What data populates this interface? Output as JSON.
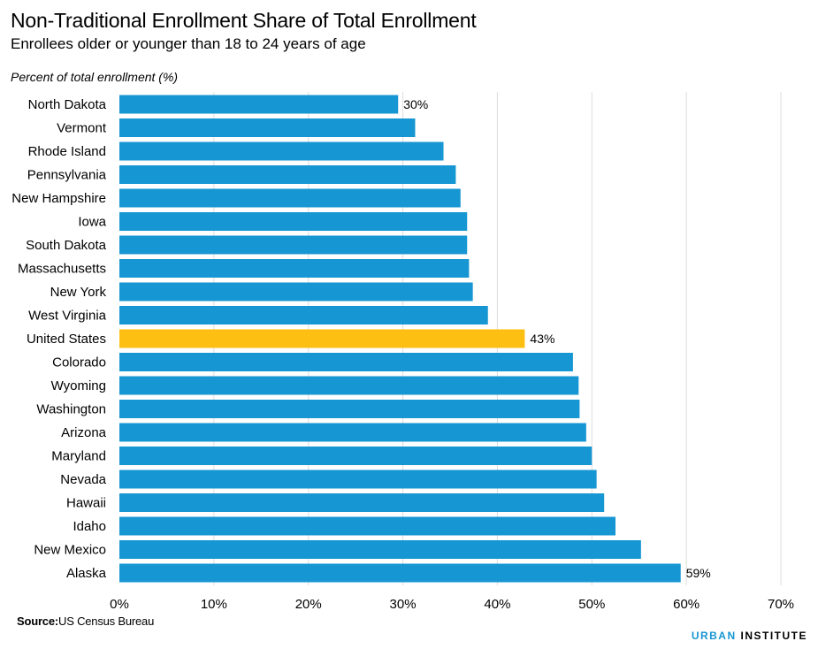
{
  "title": "Non-Traditional Enrollment Share of Total Enrollment",
  "subtitle": "Enrollees older or younger than 18 to 24 years of age",
  "source_label": "Source:",
  "source_text": "US Census Bureau",
  "logo": {
    "part1": "URBAN",
    "part2": "INSTITUTE"
  },
  "colors": {
    "bar": "#1696d2",
    "highlight": "#fdbf11",
    "grid": "#dedddd",
    "logo_accent": "#1696d2"
  },
  "chart_data": {
    "type": "bar",
    "orientation": "horizontal",
    "title": "Non-Traditional Enrollment Share of Total Enrollment",
    "subtitle": "Enrollees older or younger than 18 to 24 years of age",
    "ylabel": "Percent of total enrollment (%)",
    "categories": [
      "North Dakota",
      "Vermont",
      "Rhode Island",
      "Pennsylvania",
      "New Hampshire",
      "Iowa",
      "South Dakota",
      "Massachusetts",
      "New York",
      "West Virginia",
      "United States",
      "Colorado",
      "Wyoming",
      "Washington",
      "Arizona",
      "Maryland",
      "Nevada",
      "Hawaii",
      "Idaho",
      "New Mexico",
      "Alaska"
    ],
    "values": [
      29.5,
      31.3,
      34.3,
      35.6,
      36.1,
      36.8,
      36.8,
      37.0,
      37.4,
      39.0,
      42.9,
      48.0,
      48.6,
      48.7,
      49.4,
      50.0,
      50.5,
      51.3,
      52.5,
      55.2,
      59.4
    ],
    "highlight": "United States",
    "data_labels": [
      {
        "category": "North Dakota",
        "text": "30%"
      },
      {
        "category": "United States",
        "text": "43%"
      },
      {
        "category": "Alaska",
        "text": "59%"
      }
    ],
    "xlim": [
      0,
      70
    ],
    "xticks": [
      0,
      10,
      20,
      30,
      40,
      50,
      60,
      70
    ],
    "xtick_labels": [
      "0%",
      "10%",
      "20%",
      "30%",
      "40%",
      "50%",
      "60%",
      "70%"
    ],
    "grid": true
  }
}
